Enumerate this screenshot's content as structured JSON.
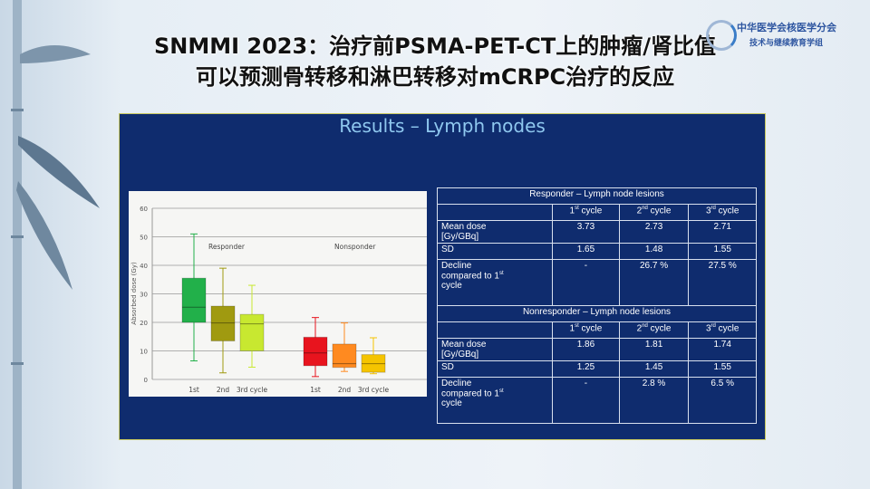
{
  "title": {
    "line1": "SNMMI 2023：治疗前PSMA-PET-CT上的肿瘤/肾比值",
    "line2": "可以预测骨转移和淋巴转移对mCRPC治疗的反应"
  },
  "logo": {
    "line1": "中华医学会核医学分会",
    "line2": "技术与继续教育学组"
  },
  "slide_title": "Results – Lymph nodes",
  "chart_data": {
    "type": "box",
    "ylabel": "Absorbed dose (Gy)",
    "ylim": [
      0,
      60
    ],
    "yticks": [
      "0",
      "10",
      "20",
      "30",
      "40",
      "50",
      "60"
    ],
    "grid": true,
    "groups": [
      "Responder",
      "Nonsponder"
    ],
    "categories": [
      "1st",
      "2nd",
      "3rd cycle",
      "1st",
      "2nd",
      "3rd cycle"
    ],
    "boxes": [
      {
        "group": "Responder",
        "label": "1st",
        "min": 6.5,
        "q1": 20,
        "median": 25.3,
        "q3": 35.5,
        "max": 51,
        "color": "#22b04a"
      },
      {
        "group": "Responder",
        "label": "2nd",
        "min": 2.3,
        "q1": 13.5,
        "median": 19.8,
        "q3": 25.7,
        "max": 39,
        "color": "#a09a10"
      },
      {
        "group": "Responder",
        "label": "3rd cycle",
        "min": 4.3,
        "q1": 10,
        "median": 19.5,
        "q3": 22.8,
        "max": 33,
        "color": "#c8e830"
      },
      {
        "group": "Nonsponder",
        "label": "1st",
        "min": 1,
        "q1": 4.8,
        "median": 9.3,
        "q3": 14.8,
        "max": 21.7,
        "color": "#e8141e"
      },
      {
        "group": "Nonsponder",
        "label": "2nd",
        "min": 2.8,
        "q1": 4.2,
        "median": 5.5,
        "q3": 12.4,
        "max": 19.8,
        "color": "#ff8a20"
      },
      {
        "group": "Nonsponder",
        "label": "3rd cycle",
        "min": 2,
        "q1": 2.5,
        "median": 5.5,
        "q3": 8.7,
        "max": 14.6,
        "color": "#f5c400"
      }
    ]
  },
  "table": {
    "responder": {
      "header": "Responder – Lymph node lesions",
      "cols": [
        "1",
        "st",
        " cycle",
        "2",
        "nd",
        " cycle",
        "3",
        "rd",
        " cycle"
      ],
      "mean_label": "Mean dose",
      "mean_unit": "[Gy/GBq]",
      "mean": [
        "3.73",
        "2.73",
        "2.71"
      ],
      "sd_label": "SD",
      "sd": [
        "1.65",
        "1.48",
        "1.55"
      ],
      "decline_label": "Decline",
      "decline_label2": "compared to 1",
      "decline_sup": "st",
      "decline_label3": "cycle",
      "decline": [
        "-",
        "26.7 %",
        "27.5 %"
      ]
    },
    "nonresponder": {
      "header": "Nonresponder – Lymph node lesions",
      "mean": [
        "1.86",
        "1.81",
        "1.74"
      ],
      "sd": [
        "1.25",
        "1.45",
        "1.55"
      ],
      "decline": [
        "-",
        "2.8 %",
        "6.5 %"
      ]
    }
  }
}
